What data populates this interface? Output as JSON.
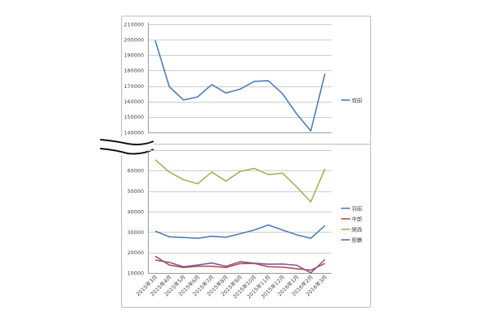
{
  "chart_data": [
    {
      "type": "line",
      "title": "",
      "categories": [
        "2015年3月",
        "2015年4月",
        "2015年5月",
        "2015年6月",
        "2015年7月",
        "2015年8月",
        "2015年9月",
        "2015年10月",
        "2015年11月",
        "2015年12月",
        "2016年1月",
        "2016年2月",
        "2016年3月"
      ],
      "yticks": [
        "210000",
        "200000",
        "190000",
        "180000",
        "170000",
        "160000",
        "150000",
        "140000"
      ],
      "ylim": [
        140000,
        210000
      ],
      "grid": true,
      "legend_position": "right",
      "series": [
        {
          "name": "成田",
          "color": "#4a7ebb",
          "values": [
            199500,
            169500,
            161000,
            163000,
            171000,
            165500,
            168000,
            173000,
            173500,
            165000,
            152000,
            141000,
            178000
          ]
        }
      ]
    },
    {
      "type": "line",
      "title": "",
      "categories": [
        "2015年3月",
        "2015年4月",
        "2015年5月",
        "2015年6月",
        "2015年7月",
        "2015年8月",
        "2015年9月",
        "2015年10月",
        "2015年11月",
        "2015年12月",
        "2016年1月",
        "2016年2月",
        "2016年3月"
      ],
      "yticks": [
        "60000",
        "50000",
        "40000",
        "30000",
        "20000",
        "10000"
      ],
      "ylim": [
        10000,
        70000
      ],
      "grid": true,
      "legend_position": "right",
      "series": [
        {
          "name": "羽田",
          "color": "#4a7ebb",
          "values": [
            30500,
            27700,
            27400,
            27000,
            28000,
            27500,
            29200,
            31000,
            33500,
            31000,
            28700,
            27000,
            33200
          ]
        },
        {
          "name": "中部",
          "color": "#be4b48",
          "values": [
            18300,
            14000,
            12800,
            13400,
            13400,
            12800,
            14700,
            14800,
            13200,
            13000,
            12200,
            11500,
            14800
          ]
        },
        {
          "name": "関西",
          "color": "#98b954",
          "values": [
            65200,
            59200,
            55500,
            53500,
            59200,
            54800,
            59500,
            61000,
            58000,
            58700,
            52000,
            44700,
            60800
          ]
        },
        {
          "name": "那覇",
          "color": "#7d60a0",
          "values": [
            16400,
            15300,
            13200,
            14000,
            15000,
            13400,
            15600,
            14900,
            14400,
            14500,
            13900,
            10200,
            16700
          ]
        }
      ]
    }
  ]
}
